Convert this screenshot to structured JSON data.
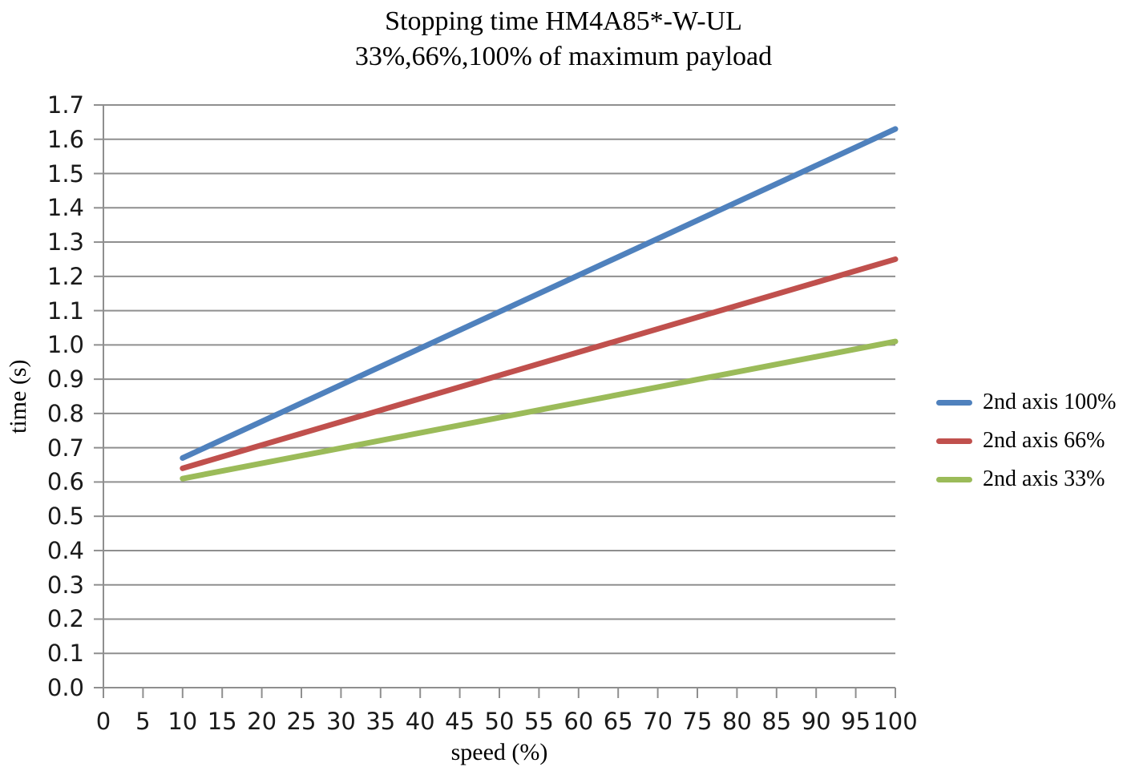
{
  "chart_data": {
    "type": "line",
    "title": "Stopping time HM4A85*-W-UL",
    "subtitle": "33%,66%,100% of maximum payload",
    "xlabel": "speed (%)",
    "ylabel": "time (s)",
    "xlim": [
      0,
      100
    ],
    "ylim": [
      0.0,
      1.7
    ],
    "xtick_step": 5,
    "ytick_step": 0.1,
    "grid": "horizontal-only",
    "legend_position": "right",
    "series": [
      {
        "name": "2nd axis 100%",
        "color": "#4F81BD",
        "points": [
          [
            10,
            0.67
          ],
          [
            100,
            1.63
          ]
        ]
      },
      {
        "name": "2nd axis 66%",
        "color": "#C0504D",
        "points": [
          [
            10,
            0.64
          ],
          [
            100,
            1.25
          ]
        ]
      },
      {
        "name": "2nd axis 33%",
        "color": "#9BBB59",
        "points": [
          [
            10,
            0.61
          ],
          [
            100,
            1.01
          ]
        ]
      }
    ],
    "colors": {
      "gridline": "#8f8f8f",
      "axis": "#8f8f8f",
      "tick_text": "#1a1a1a",
      "title_text": "#000000"
    }
  }
}
